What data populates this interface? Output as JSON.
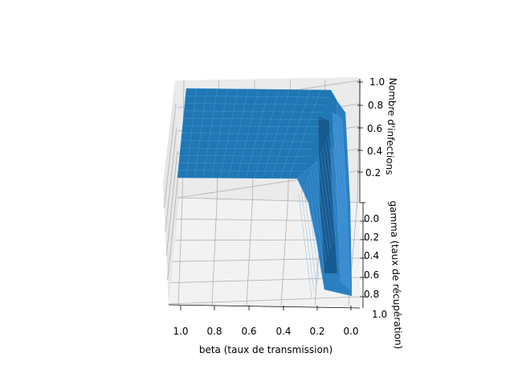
{
  "chart_data": {
    "type": "surface",
    "title": "",
    "xlabel": "beta (taux de transmission)",
    "ylabel": "gamma (taux de récupération)",
    "zlabel": "Nombre d'infections",
    "x_ticks": [
      "1.0",
      "0.8",
      "0.6",
      "0.4",
      "0.2",
      "0.0"
    ],
    "y_ticks": [
      "0.0",
      "0.2",
      "0.4",
      "0.6",
      "0.8",
      "1.0"
    ],
    "z_ticks": [
      "0.2",
      "0.4",
      "0.6",
      "0.8",
      "1.0"
    ],
    "xlim": [
      0,
      1
    ],
    "ylim": [
      0,
      1
    ],
    "zlim": [
      0,
      1
    ],
    "grid": true,
    "surface_color": "#1f77b4",
    "pane_color": "#f2f2f2",
    "grid_color": "#b0b0b0",
    "surface_profile_vs_beta_at_gamma_0": {
      "beta": [
        1.0,
        0.8,
        0.6,
        0.4,
        0.3,
        0.2,
        0.15,
        0.1,
        0.05,
        0.0
      ],
      "infections": [
        1.0,
        1.0,
        1.0,
        0.99,
        0.97,
        0.92,
        0.8,
        0.5,
        0.1,
        0.0
      ]
    },
    "surface_profile_vs_beta_at_gamma_1": {
      "beta": [
        1.0,
        0.8,
        0.6,
        0.4,
        0.3,
        0.2,
        0.15,
        0.1,
        0.05,
        0.0
      ],
      "infections": [
        1.0,
        1.0,
        1.0,
        1.0,
        0.99,
        0.97,
        0.85,
        0.3,
        0.05,
        0.0
      ]
    }
  }
}
